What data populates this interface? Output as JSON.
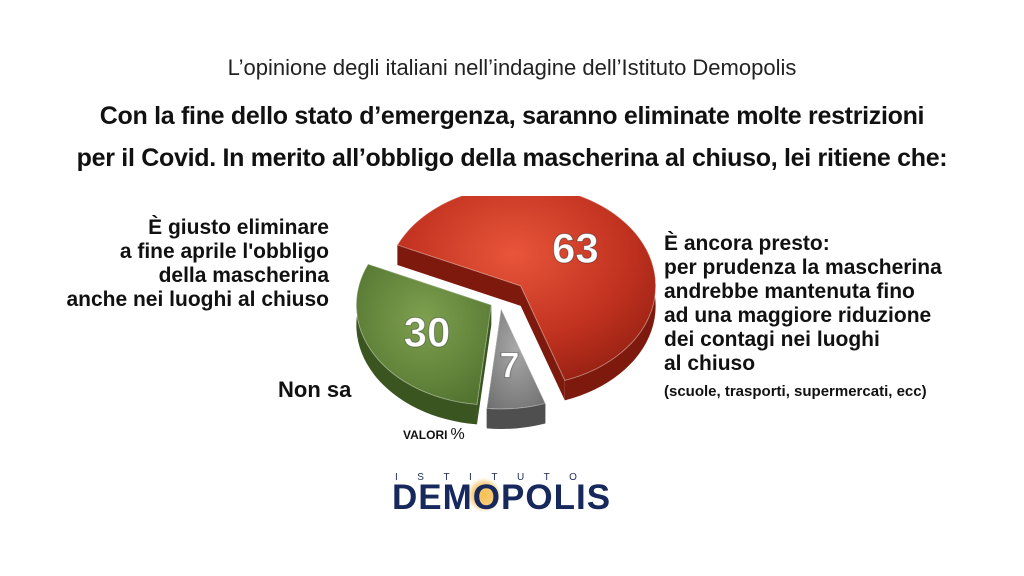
{
  "header": {
    "subtitle": "L’opinione degli italiani nell’indagine dell’Istituto Demopolis",
    "question_line1": "Con la fine dello stato d’emergenza, saranno eliminate molte restrizioni",
    "question_line2": "per il Covid. In merito all’obbligo della mascherina al chiuso, lei ritiene che:"
  },
  "labels": {
    "left": [
      "È giusto eliminare",
      "a fine aprile l'obbligo",
      "della mascherina",
      "anche nei luoghi al chiuso"
    ],
    "right": [
      "È ancora presto:",
      "per prudenza la mascherina",
      "andrebbe mantenuta fino",
      "ad una maggiore riduzione",
      "dei contagi nei luoghi",
      "al chiuso"
    ],
    "right_note": "(scuole, trasporti, supermercati, ecc)",
    "nonsa": "Non sa"
  },
  "units": {
    "text": "VALORI",
    "symbol": "%"
  },
  "logo": {
    "top": "ISTITUTO",
    "main_before": "DEM",
    "main_o": "O",
    "main_after": "POLIS"
  },
  "chart_data": {
    "type": "pie",
    "title": "",
    "slices": [
      {
        "label": "È ancora presto",
        "value": 63,
        "color": "#c0311f"
      },
      {
        "label": "Non sa",
        "value": 7,
        "color": "#8a8a8a"
      },
      {
        "label": "È giusto eliminare",
        "value": 30,
        "color": "#5a7f34"
      }
    ],
    "exploded": "3D exploded pie",
    "units": "%"
  }
}
